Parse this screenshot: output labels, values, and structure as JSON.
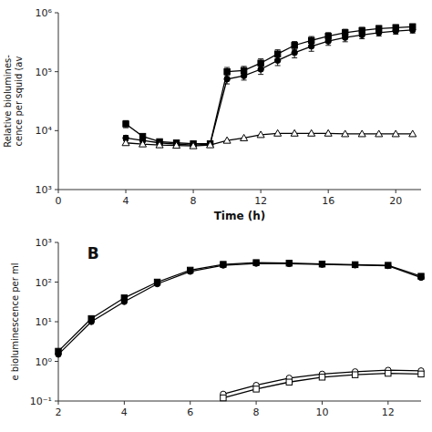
{
  "chart_data": [
    {
      "type": "line",
      "x_label": "Time (h)",
      "y_label": "Relative biolumines-\ncence per squid (av",
      "log": "y",
      "x": [
        4,
        5,
        6,
        7,
        8,
        9,
        10,
        11,
        12,
        13,
        14,
        15,
        16,
        17,
        18,
        19,
        20,
        21
      ],
      "xlim": [
        0,
        21.5
      ],
      "xticks": [
        0,
        4,
        8,
        12,
        16,
        20
      ],
      "ylim": [
        1000,
        1000000
      ],
      "yticks": [
        {
          "value": 1000,
          "label": "10³"
        },
        {
          "value": 10000,
          "label": "10⁴"
        },
        {
          "value": 100000,
          "label": "10⁵"
        },
        {
          "value": 1000000,
          "label": "10⁶"
        }
      ],
      "series": [
        {
          "marker": "filled-square",
          "color": "black",
          "values": [
            13000,
            8000,
            6500,
            6200,
            6000,
            6000,
            100000,
            105000,
            140000,
            200000,
            280000,
            340000,
            400000,
            460000,
            500000,
            540000,
            560000,
            580000
          ],
          "errors": [
            1800,
            600,
            400,
            400,
            300,
            400,
            18000,
            18000,
            25000,
            35000,
            45000,
            55000,
            60000,
            65000,
            65000,
            65000,
            65000,
            65000
          ]
        },
        {
          "marker": "filled-circle",
          "color": "black",
          "values": [
            7500,
            6800,
            6200,
            5900,
            5700,
            5900,
            75000,
            85000,
            110000,
            155000,
            210000,
            270000,
            330000,
            380000,
            420000,
            460000,
            490000,
            510000
          ],
          "errors": [
            800,
            500,
            400,
            400,
            300,
            400,
            13000,
            13000,
            20000,
            28000,
            38000,
            48000,
            50000,
            58000,
            58000,
            58000,
            58000,
            58000
          ]
        },
        {
          "marker": "open-triangle",
          "color": "black",
          "values": [
            6200,
            5900,
            5700,
            5600,
            5500,
            5700,
            6800,
            7500,
            8500,
            9000,
            9000,
            9000,
            9000,
            8800,
            8800,
            8800,
            8800,
            8800
          ]
        }
      ]
    },
    {
      "type": "line",
      "y_label": "e bioluminescence per ml",
      "log": "y",
      "annotations": [
        "B"
      ],
      "x": [
        2,
        3,
        4,
        5,
        6,
        7,
        8,
        9,
        10,
        11,
        12,
        13
      ],
      "xlim": [
        2,
        13
      ],
      "xticks": [
        2,
        4,
        6,
        8,
        10,
        12
      ],
      "ylim": [
        0.1,
        1000
      ],
      "yticks": [
        {
          "value": 0.1,
          "label": "10⁻¹"
        },
        {
          "value": 1,
          "label": "10⁰"
        },
        {
          "value": 10,
          "label": "10¹"
        },
        {
          "value": 100,
          "label": "10²"
        },
        {
          "value": 1000,
          "label": "10³"
        }
      ],
      "series": [
        {
          "marker": "filled-square",
          "color": "black",
          "values": [
            1.8,
            12,
            40,
            100,
            200,
            280,
            310,
            300,
            285,
            275,
            265,
            140
          ]
        },
        {
          "marker": "filled-circle",
          "color": "black",
          "values": [
            1.5,
            10,
            32,
            90,
            185,
            265,
            295,
            290,
            278,
            268,
            258,
            130
          ]
        },
        {
          "marker": "open-circle",
          "color": "black",
          "values": [
            null,
            null,
            null,
            null,
            null,
            0.15,
            0.25,
            0.38,
            0.48,
            0.55,
            0.6,
            0.58
          ]
        },
        {
          "marker": "open-square",
          "color": "black",
          "values": [
            null,
            null,
            null,
            null,
            null,
            0.12,
            0.2,
            0.3,
            0.4,
            0.46,
            0.5,
            0.48
          ]
        }
      ]
    }
  ]
}
